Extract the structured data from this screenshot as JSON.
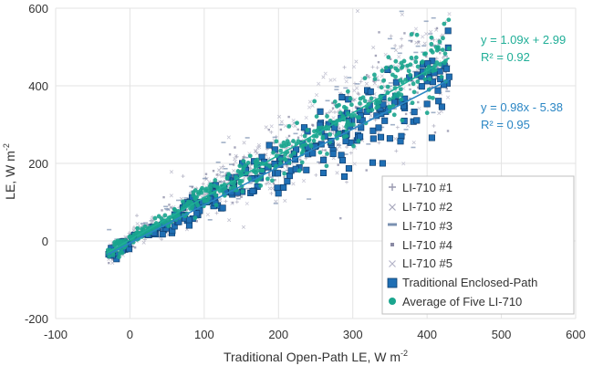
{
  "chart_data": {
    "type": "scatter",
    "xlabel": "Traditional Open-Path LE, W m",
    "xlabel_sup": "-2",
    "ylabel": "LE, W m",
    "ylabel_sup": "-2",
    "xlim": [
      -100,
      600
    ],
    "ylim": [
      -200,
      600
    ],
    "xticks": [
      "-100",
      "0",
      "100",
      "200",
      "300",
      "400",
      "500",
      "600"
    ],
    "yticks": [
      "-200",
      "0",
      "200",
      "400",
      "600"
    ],
    "grid": true,
    "legend_position": "bottom-right",
    "series": [
      {
        "name": "LI-710 #1",
        "marker": "plus",
        "color": "#9a9ab0"
      },
      {
        "name": "LI-710 #2",
        "marker": "x",
        "color": "#a8a8bc"
      },
      {
        "name": "LI-710 #3",
        "marker": "dash",
        "color": "#7a90b0"
      },
      {
        "name": "LI-710 #4",
        "marker": "small-square",
        "color": "#8a8aa4"
      },
      {
        "name": "LI-710 #5",
        "marker": "x",
        "color": "#b4b4c8"
      },
      {
        "name": "Traditional Enclosed-Path",
        "marker": "square",
        "color": "#1f6fb4"
      },
      {
        "name": "Average of Five LI-710",
        "marker": "circle",
        "color": "#1aa58e"
      }
    ],
    "fits": [
      {
        "series": "Average of Five LI-710",
        "equation": "y = 1.09x + 2.99",
        "r2": "R² = 0.92",
        "slope": 1.09,
        "intercept": 2.99,
        "x_range": [
          -30,
          430
        ],
        "color": "#1fae97"
      },
      {
        "series": "Traditional Enclosed-Path",
        "equation": "y = 0.98x - 5.38",
        "r2": "R² = 0.95",
        "slope": 0.98,
        "intercept": -5.38,
        "x_range": [
          -30,
          430
        ],
        "color": "#2a86c4"
      }
    ],
    "cloud": {
      "x_range": [
        -30,
        430
      ],
      "note": "dense overlapping point cloud along 1:1 line"
    }
  }
}
